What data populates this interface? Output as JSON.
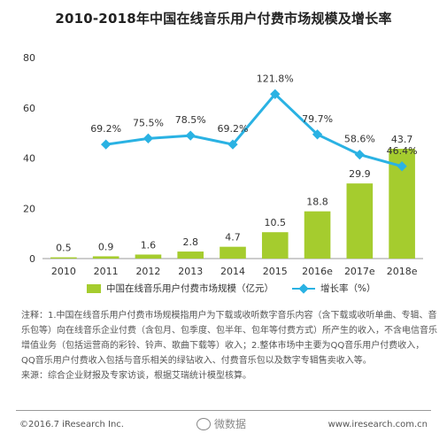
{
  "title": "2010-2018年中国在线音乐用户付费市场规模及增长率",
  "chart_data": {
    "type": "bar+line",
    "categories": [
      "2010",
      "2011",
      "2012",
      "2013",
      "2014",
      "2015",
      "2016e",
      "2017e",
      "2018e"
    ],
    "series": [
      {
        "name": "中国在线音乐用户付费市场规模（亿元）",
        "type": "bar",
        "values": [
          0.5,
          0.9,
          1.6,
          2.8,
          4.7,
          10.5,
          18.8,
          29.9,
          43.7
        ],
        "labels": [
          "0.5",
          "0.9",
          "1.6",
          "2.8",
          "4.7",
          "10.5",
          "18.8",
          "29.9",
          "43.7"
        ]
      },
      {
        "name": "增长率（%）",
        "type": "line",
        "values": [
          null,
          69.2,
          75.5,
          78.5,
          69.2,
          121.8,
          79.7,
          58.6,
          46.4
        ],
        "labels": [
          "",
          "69.2%",
          "75.5%",
          "78.5%",
          "69.2%",
          "121.8%",
          "79.7%",
          "58.6%",
          "46.4%"
        ]
      }
    ],
    "ylim": [
      0,
      80
    ],
    "yticks": [
      "0",
      "20",
      "40",
      "60",
      "80"
    ],
    "bar_color": "#a5cc2e",
    "line_color": "#2ab2e3",
    "legend_position": "bottom"
  },
  "notes": {
    "line1": "注释：1.中国在线音乐用户付费市场规模指用户为下载或收听数字音乐内容（含下载或收听单曲、专辑、音乐包等）向在线音乐企业付费（含包月、包季度、包半年、包年等付费方式）所产生的收入，不含电信音乐增值业务（包括运营商的彩铃、铃声、歌曲下载等）收入；2.整体市场中主要为QQ音乐用户付费收入，QQ音乐用户付费收入包括与音乐相关的绿钻收入、付费音乐包以及数字专辑售卖收入等。",
    "line2": "来源：综合企业财报及专家访谈，根据艾瑞统计模型核算。"
  },
  "footer": {
    "left": "©2016.7 iResearch Inc.",
    "right": "www.iresearch.com.cn",
    "watermark": "微数据"
  }
}
